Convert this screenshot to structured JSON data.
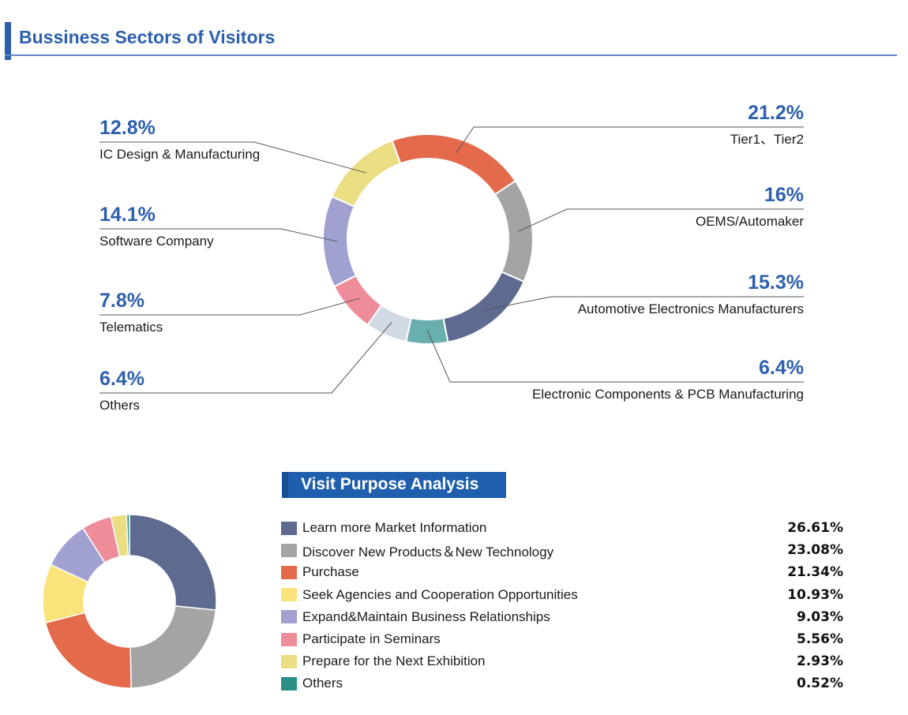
{
  "header": {
    "title": "Bussiness Sectors of Visitors"
  },
  "chart_data": [
    {
      "type": "pie",
      "title": "Bussiness Sectors of Visitors",
      "donut": true,
      "slices": [
        {
          "label": "Tier1、Tier2",
          "value": 21.2,
          "display": "21.2%",
          "color": "#e46a4c"
        },
        {
          "label": "OEMS/Automaker",
          "value": 16,
          "display": "16%",
          "color": "#a3a4a3"
        },
        {
          "label": "Automotive Electronics Manufacturers",
          "value": 15.3,
          "display": "15.3%",
          "color": "#5e6a90"
        },
        {
          "label": "Electronic Components & PCB Manufacturing",
          "value": 6.4,
          "display": "6.4%",
          "color": "#6aafaf"
        },
        {
          "label": "Others",
          "value": 6.4,
          "display": "6.4%",
          "color": "#d1d9e2"
        },
        {
          "label": "Telematics",
          "value": 7.8,
          "display": "7.8%",
          "color": "#ef8c9a"
        },
        {
          "label": "Software Company",
          "value": 14.1,
          "display": "14.1%",
          "color": "#a0a0d1"
        },
        {
          "label": "IC Design & Manufacturing",
          "value": 12.8,
          "display": "12.8%",
          "color": "#ebdd82"
        }
      ]
    },
    {
      "type": "pie",
      "title": "Visit Purpose Analysis",
      "donut": true,
      "slices": [
        {
          "label": "Learn more Market Information",
          "value": 26.61,
          "display": "26.61%",
          "color": "#5e6a90"
        },
        {
          "label": "Discover New Products＆New Technology",
          "value": 23.08,
          "display": "23.08%",
          "color": "#a3a4a3"
        },
        {
          "label": "Purchase",
          "value": 21.34,
          "display": "21.34%",
          "color": "#e46a4c"
        },
        {
          "label": "Seek Agencies and Cooperation Opportunities",
          "value": 10.93,
          "display": "10.93%",
          "color": "#fbe37c"
        },
        {
          "label": "Expand&Maintain Business Relationships",
          "value": 9.03,
          "display": "9.03%",
          "color": "#a0a0d1"
        },
        {
          "label": "Participate in Seminars",
          "value": 5.56,
          "display": "5.56%",
          "color": "#ef8c9a"
        },
        {
          "label": "Prepare for the Next Exhibition",
          "value": 2.93,
          "display": "2.93%",
          "color": "#ebdd82"
        },
        {
          "label": "Others",
          "value": 0.52,
          "display": "0.52%",
          "color": "#2a9087"
        }
      ]
    }
  ]
}
